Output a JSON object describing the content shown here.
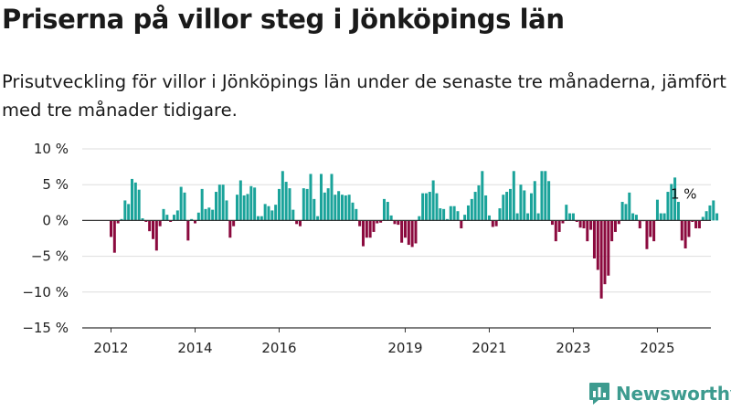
{
  "title": "Priserna på villor steg i Jönköpings län",
  "subtitle": "Prisutveckling för villor i Jönköpings län under de senaste tre månaderna, jämfört med tre månader tidigare.",
  "logo_text": "Newsworthy",
  "colors": {
    "positive": "#1aa39a",
    "negative": "#8b0a3e",
    "grid": "#dddddd",
    "zero_line": "#333333"
  },
  "chart_data": {
    "type": "bar",
    "x_start": "2012-01",
    "x_step": "month",
    "xlabel": "",
    "ylabel": "",
    "ylim": [
      -15,
      10
    ],
    "grid": true,
    "legend": "none",
    "y_ticks": [
      {
        "value": 10,
        "label": "10 %"
      },
      {
        "value": 5,
        "label": "5 %"
      },
      {
        "value": 0,
        "label": "0 %"
      },
      {
        "value": -5,
        "label": "−5 %"
      },
      {
        "value": -10,
        "label": "−10 %"
      },
      {
        "value": -15,
        "label": "−15 %"
      }
    ],
    "x_ticks": [
      {
        "date": "2012-01",
        "label": "2012"
      },
      {
        "date": "2014-01",
        "label": "2014"
      },
      {
        "date": "2016-01",
        "label": "2016"
      },
      {
        "date": "2019-01",
        "label": "2019"
      },
      {
        "date": "2021-01",
        "label": "2021"
      },
      {
        "date": "2023-01",
        "label": "2023"
      },
      {
        "date": "2025-01",
        "label": "2025"
      }
    ],
    "values": [
      -2.3,
      -4.5,
      -0.4,
      0.2,
      2.8,
      2.3,
      5.8,
      5.3,
      4.3,
      0.3,
      -0.2,
      -1.5,
      -2.6,
      -4.2,
      -0.8,
      1.6,
      0.8,
      -0.2,
      0.8,
      1.4,
      4.7,
      3.9,
      -2.8,
      0.2,
      -0.4,
      1.1,
      4.4,
      1.6,
      1.8,
      1.5,
      4.0,
      5.0,
      5.0,
      2.8,
      -2.4,
      -0.8,
      3.6,
      5.6,
      3.5,
      3.7,
      4.8,
      4.6,
      0.6,
      0.6,
      2.3,
      2.0,
      1.4,
      2.2,
      4.4,
      6.9,
      5.4,
      4.5,
      1.5,
      -0.5,
      -0.8,
      4.5,
      4.4,
      6.5,
      3.0,
      0.6,
      6.5,
      3.9,
      4.5,
      6.5,
      3.6,
      4.1,
      3.6,
      3.5,
      3.6,
      2.5,
      1.6,
      -0.8,
      -3.6,
      -2.4,
      -2.4,
      -1.6,
      -0.4,
      -0.3,
      3.0,
      2.6,
      0.7,
      -0.5,
      -0.6,
      -3.1,
      -2.4,
      -3.4,
      -3.7,
      -3.2,
      0.6,
      3.8,
      3.8,
      4.0,
      5.6,
      3.8,
      1.7,
      1.6,
      0.2,
      2.0,
      2.0,
      1.3,
      -1.1,
      0.8,
      2.1,
      3.0,
      4.0,
      4.9,
      6.9,
      3.5,
      0.7,
      -0.9,
      -0.8,
      1.7,
      3.6,
      4.0,
      4.4,
      6.9,
      1.0,
      5.0,
      4.2,
      1.0,
      3.8,
      5.5,
      1.0,
      6.9,
      6.9,
      5.5,
      -0.6,
      -2.9,
      -1.6,
      -0.4,
      2.2,
      1.0,
      1.0,
      -0.2,
      -1.0,
      -1.1,
      -2.9,
      -1.3,
      -5.3,
      -6.9,
      -10.9,
      -8.9,
      -7.7,
      -2.9,
      -1.6,
      -0.5,
      2.6,
      2.3,
      3.9,
      1.0,
      0.8,
      -1.1,
      -0.1,
      -4.0,
      -2.3,
      -2.9,
      2.9,
      1.0,
      1.0,
      4.0,
      5.1,
      6.0,
      2.6,
      -2.8,
      -3.9,
      -2.3,
      -0.2,
      -1.1,
      -1.1,
      0.5,
      1.3,
      2.1,
      2.8,
      1.0
    ],
    "annotations": [
      {
        "date": "2025-08",
        "text": "1 %"
      }
    ]
  }
}
